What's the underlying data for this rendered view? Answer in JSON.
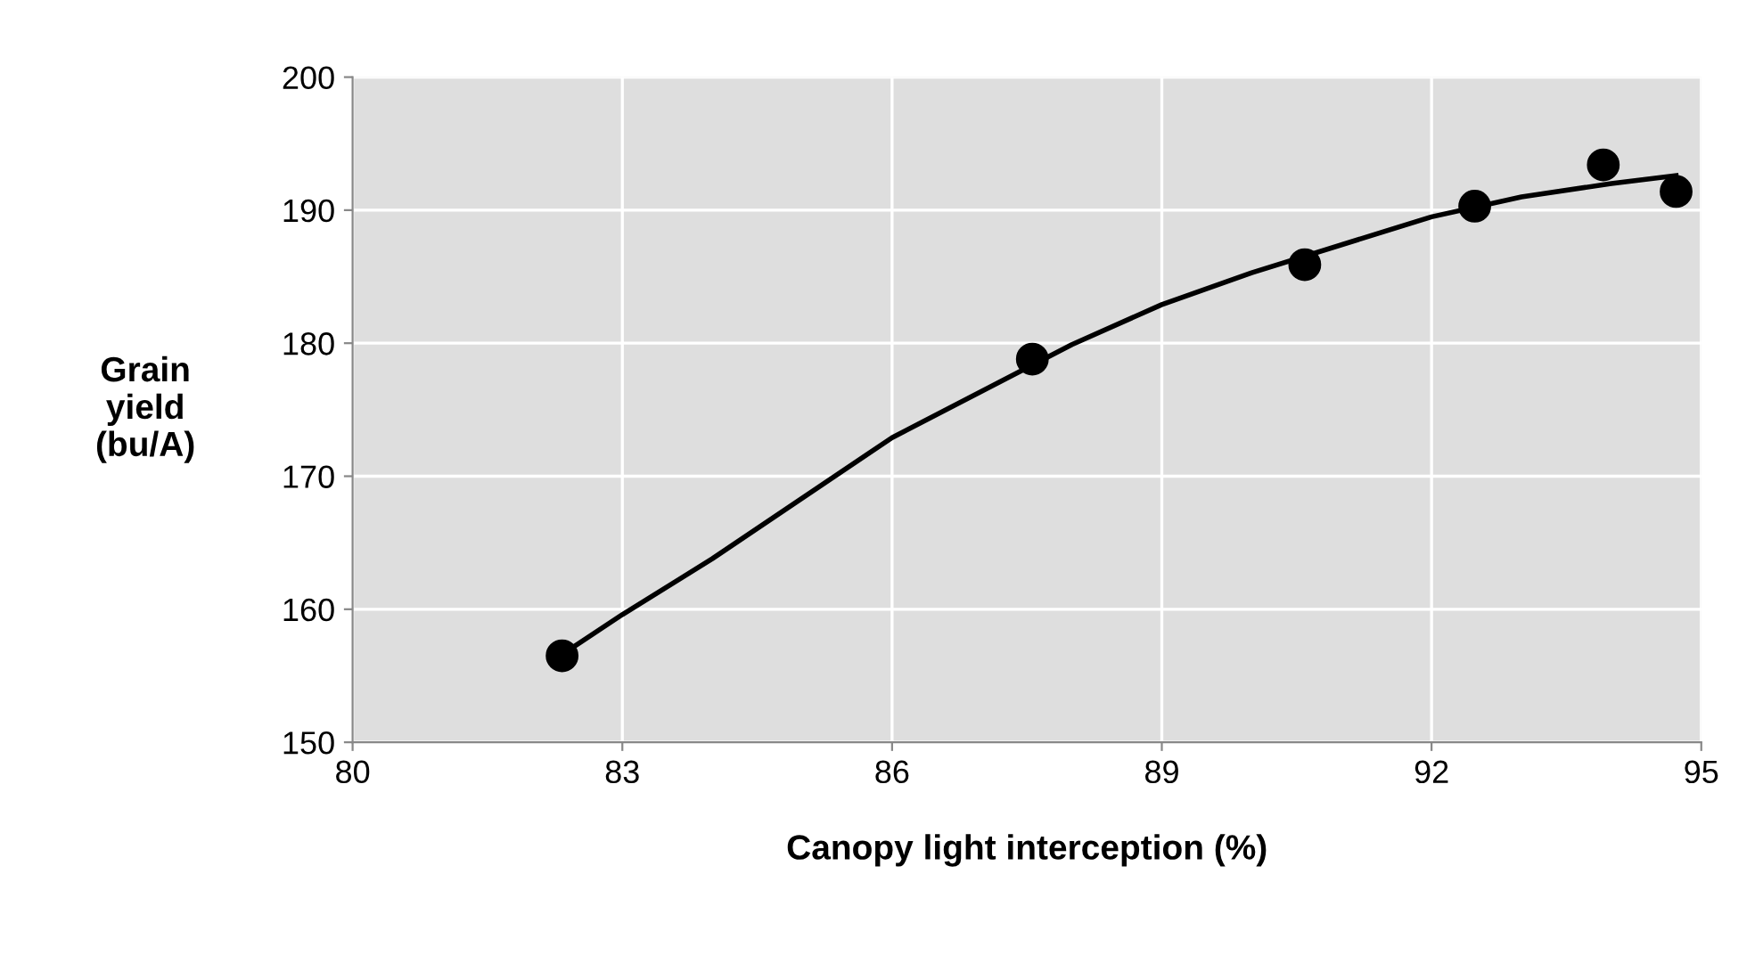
{
  "chart_data": {
    "type": "scatter",
    "xlabel": "Canopy light interception (%)",
    "ylabel": "Grain\nyield\n(bu/A)",
    "xlim": [
      80,
      95
    ],
    "xticks": [
      80,
      83,
      86,
      89,
      92,
      95
    ],
    "ylim": [
      150,
      200
    ],
    "yticks": [
      150,
      160,
      170,
      180,
      190,
      200
    ],
    "grid": true,
    "marker": "circle",
    "series": [
      {
        "color": "#000000",
        "x": [
          82.33,
          87.56,
          90.59,
          92.48,
          93.91,
          94.72
        ],
        "values": [
          156.5,
          178.8,
          185.9,
          190.3,
          193.4,
          191.4
        ]
      },
      {
        "type": "line",
        "color": "#000000",
        "marker": "none",
        "x": [
          82.33,
          83,
          84,
          86,
          88,
          89,
          90,
          92,
          93,
          94,
          94.72
        ],
        "values": [
          156.6,
          159.6,
          163.8,
          172.9,
          179.9,
          182.9,
          185.3,
          189.5,
          191.0,
          192.0,
          192.6
        ]
      }
    ]
  }
}
